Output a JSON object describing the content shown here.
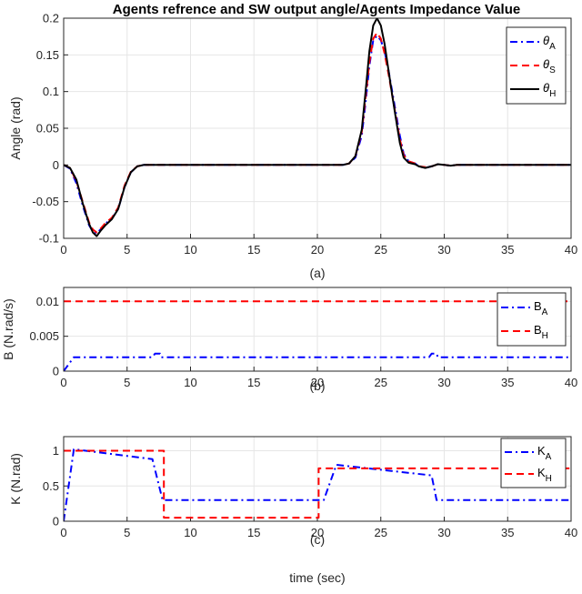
{
  "figure": {
    "title": "Agents refrence and SW output angle/Agents Impedance Value"
  },
  "chart_data": [
    {
      "type": "line",
      "caption": "(a)",
      "ylabel": "Angle (rad)",
      "xlabel": "",
      "xlim": [
        0,
        40
      ],
      "ylim": [
        -0.1,
        0.2
      ],
      "xticks": [
        0,
        5,
        10,
        15,
        20,
        25,
        30,
        35,
        40
      ],
      "yticks": [
        -0.1,
        -0.05,
        0,
        0.05,
        0.1,
        0.15,
        0.2
      ],
      "ytick_labels": [
        "-0.1",
        "-0.05",
        "0",
        "0.05",
        "0.1",
        "0.15",
        "0.2"
      ],
      "grid": true,
      "legend": "top-right",
      "series": [
        {
          "name": "θA",
          "legend_main": "θ",
          "legend_sub": "A",
          "color": "#0000ff",
          "style": "dashdot",
          "x": [
            0,
            0.5,
            1,
            1.5,
            2,
            2.3,
            2.6,
            2.9,
            3.3,
            3.8,
            4.3,
            4.8,
            5.3,
            5.8,
            6.3,
            7,
            22,
            22.5,
            23,
            23.5,
            23.8,
            24.1,
            24.4,
            24.7,
            25,
            25.3,
            25.6,
            25.9,
            26.2,
            26.5,
            26.8,
            27.2,
            27.7,
            28,
            28.5,
            29,
            29.5,
            30,
            30.5,
            31,
            40
          ],
          "y": [
            0,
            -0.005,
            -0.025,
            -0.055,
            -0.082,
            -0.091,
            -0.093,
            -0.088,
            -0.08,
            -0.073,
            -0.06,
            -0.03,
            -0.01,
            -0.002,
            0,
            0,
            0,
            0.002,
            0.01,
            0.04,
            0.085,
            0.135,
            0.17,
            0.176,
            0.17,
            0.155,
            0.13,
            0.1,
            0.07,
            0.04,
            0.015,
            0.005,
            0.002,
            -0.002,
            -0.004,
            -0.002,
            0.001,
            0,
            -0.001,
            0,
            0
          ]
        },
        {
          "name": "θS",
          "legend_main": "θ",
          "legend_sub": "S",
          "color": "#ff0000",
          "style": "dashed",
          "x": [
            0,
            0.5,
            1,
            1.5,
            2,
            2.3,
            2.6,
            2.9,
            3.3,
            3.8,
            4.3,
            4.8,
            5.3,
            5.8,
            6.3,
            7,
            22,
            22.5,
            23,
            23.5,
            23.8,
            24.1,
            24.4,
            24.7,
            25,
            25.3,
            25.6,
            25.9,
            26.2,
            26.5,
            26.8,
            27.2,
            27.7,
            28,
            28.5,
            29,
            29.5,
            30,
            30.5,
            31,
            40
          ],
          "y": [
            0,
            -0.004,
            -0.022,
            -0.05,
            -0.078,
            -0.088,
            -0.092,
            -0.087,
            -0.079,
            -0.072,
            -0.058,
            -0.028,
            -0.009,
            -0.002,
            0,
            0,
            0,
            0.002,
            0.012,
            0.045,
            0.092,
            0.14,
            0.172,
            0.18,
            0.172,
            0.152,
            0.125,
            0.095,
            0.065,
            0.035,
            0.013,
            0.005,
            0.002,
            -0.002,
            -0.003,
            -0.002,
            0.001,
            0,
            -0.001,
            0,
            0
          ]
        },
        {
          "name": "θH",
          "legend_main": "θ",
          "legend_sub": "H",
          "color": "#000000",
          "style": "solid",
          "x": [
            0,
            0.5,
            1,
            1.5,
            2,
            2.3,
            2.6,
            2.9,
            3.3,
            3.8,
            4.3,
            4.8,
            5.3,
            5.8,
            6.3,
            7,
            22,
            22.5,
            23,
            23.5,
            23.8,
            24.1,
            24.4,
            24.7,
            25,
            25.3,
            25.6,
            25.9,
            26.2,
            26.5,
            26.8,
            27.2,
            27.7,
            28,
            28.5,
            29,
            29.5,
            30,
            30.5,
            31,
            40
          ],
          "y": [
            0,
            -0.004,
            -0.02,
            -0.052,
            -0.08,
            -0.092,
            -0.097,
            -0.09,
            -0.082,
            -0.074,
            -0.06,
            -0.03,
            -0.01,
            -0.002,
            0,
            0,
            0,
            0.002,
            0.012,
            0.048,
            0.1,
            0.155,
            0.19,
            0.2,
            0.19,
            0.165,
            0.13,
            0.095,
            0.062,
            0.03,
            0.01,
            0.003,
            0.001,
            -0.002,
            -0.004,
            -0.002,
            0.001,
            0,
            -0.001,
            0,
            0
          ]
        }
      ]
    },
    {
      "type": "line",
      "caption": "(b)",
      "ylabel": "B (N.rad/s)",
      "xlabel": "",
      "xlim": [
        0,
        40
      ],
      "ylim": [
        0,
        0.012
      ],
      "xticks": [
        0,
        5,
        10,
        15,
        20,
        25,
        30,
        35,
        40
      ],
      "yticks": [
        0,
        0.005,
        0.01
      ],
      "ytick_labels": [
        "0",
        "0.005",
        "0.01"
      ],
      "grid": true,
      "legend": "top-right",
      "series": [
        {
          "name": "BA",
          "legend_main": "B",
          "legend_sub": "A",
          "color": "#0000ff",
          "style": "dashdot",
          "x": [
            0,
            0.4,
            0.8,
            7,
            7.2,
            7.6,
            7.7,
            28.8,
            29,
            29.4,
            29.5,
            40
          ],
          "y": [
            0,
            0.001,
            0.002,
            0.002,
            0.0025,
            0.0025,
            0.002,
            0.002,
            0.0025,
            0.0025,
            0.002,
            0.002
          ]
        },
        {
          "name": "BH",
          "legend_main": "B",
          "legend_sub": "H",
          "color": "#ff0000",
          "style": "dashed",
          "x": [
            0,
            40
          ],
          "y": [
            0.01,
            0.01
          ]
        }
      ]
    },
    {
      "type": "line",
      "caption": "(c)",
      "ylabel": "K (N.rad)",
      "xlabel": "time (sec)",
      "xlim": [
        0,
        40
      ],
      "ylim": [
        0,
        1.2
      ],
      "xticks": [
        0,
        5,
        10,
        15,
        20,
        25,
        30,
        35,
        40
      ],
      "yticks": [
        0,
        0.5,
        1
      ],
      "ytick_labels": [
        "0",
        "0.5",
        "1"
      ],
      "grid": true,
      "legend": "top-right",
      "series": [
        {
          "name": "KA",
          "legend_main": "K",
          "legend_sub": "A",
          "color": "#0000ff",
          "style": "dashdot",
          "x": [
            0,
            0.8,
            7,
            7.8,
            20.5,
            21.5,
            29,
            29.4,
            40
          ],
          "y": [
            0,
            1.02,
            0.88,
            0.3,
            0.3,
            0.8,
            0.65,
            0.3,
            0.3
          ]
        },
        {
          "name": "KH",
          "legend_main": "K",
          "legend_sub": "H",
          "color": "#ff0000",
          "style": "dashed",
          "x": [
            0,
            7.9,
            7.9,
            20.1,
            20.1,
            40
          ],
          "y": [
            1,
            1,
            0.05,
            0.05,
            0.75,
            0.75
          ]
        }
      ]
    }
  ]
}
